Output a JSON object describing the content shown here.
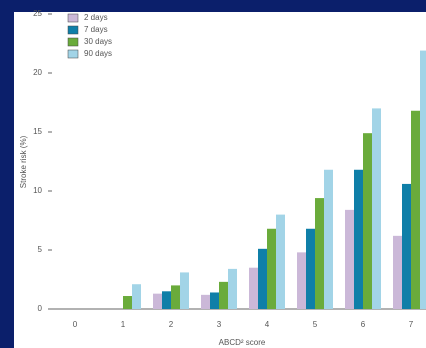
{
  "chart_data": {
    "type": "bar",
    "x_label": "ABCD² score",
    "y_label": "Stroke risk (%)",
    "categories": [
      "0",
      "1",
      "2",
      "3",
      "4",
      "5",
      "6",
      "7"
    ],
    "series": [
      {
        "name": "2 days",
        "color": "#cbb8d8",
        "values": [
          0,
          0,
          1.3,
          1.2,
          3.5,
          4.8,
          8.4,
          6.2
        ]
      },
      {
        "name": "7 days",
        "color": "#0f7fa8",
        "values": [
          0,
          0,
          1.5,
          1.4,
          5.1,
          6.8,
          11.8,
          10.6
        ]
      },
      {
        "name": "30 days",
        "color": "#6aab3b",
        "values": [
          0,
          1.1,
          2.0,
          2.3,
          6.8,
          9.4,
          14.9,
          16.8
        ]
      },
      {
        "name": "90 days",
        "color": "#a2d4e7",
        "values": [
          0,
          2.1,
          3.1,
          3.4,
          8.0,
          11.8,
          17.0,
          21.9
        ]
      }
    ],
    "ylim": [
      0,
      25
    ],
    "yticks": [
      0,
      5,
      10,
      15,
      20,
      25
    ],
    "legend": "upper left"
  }
}
